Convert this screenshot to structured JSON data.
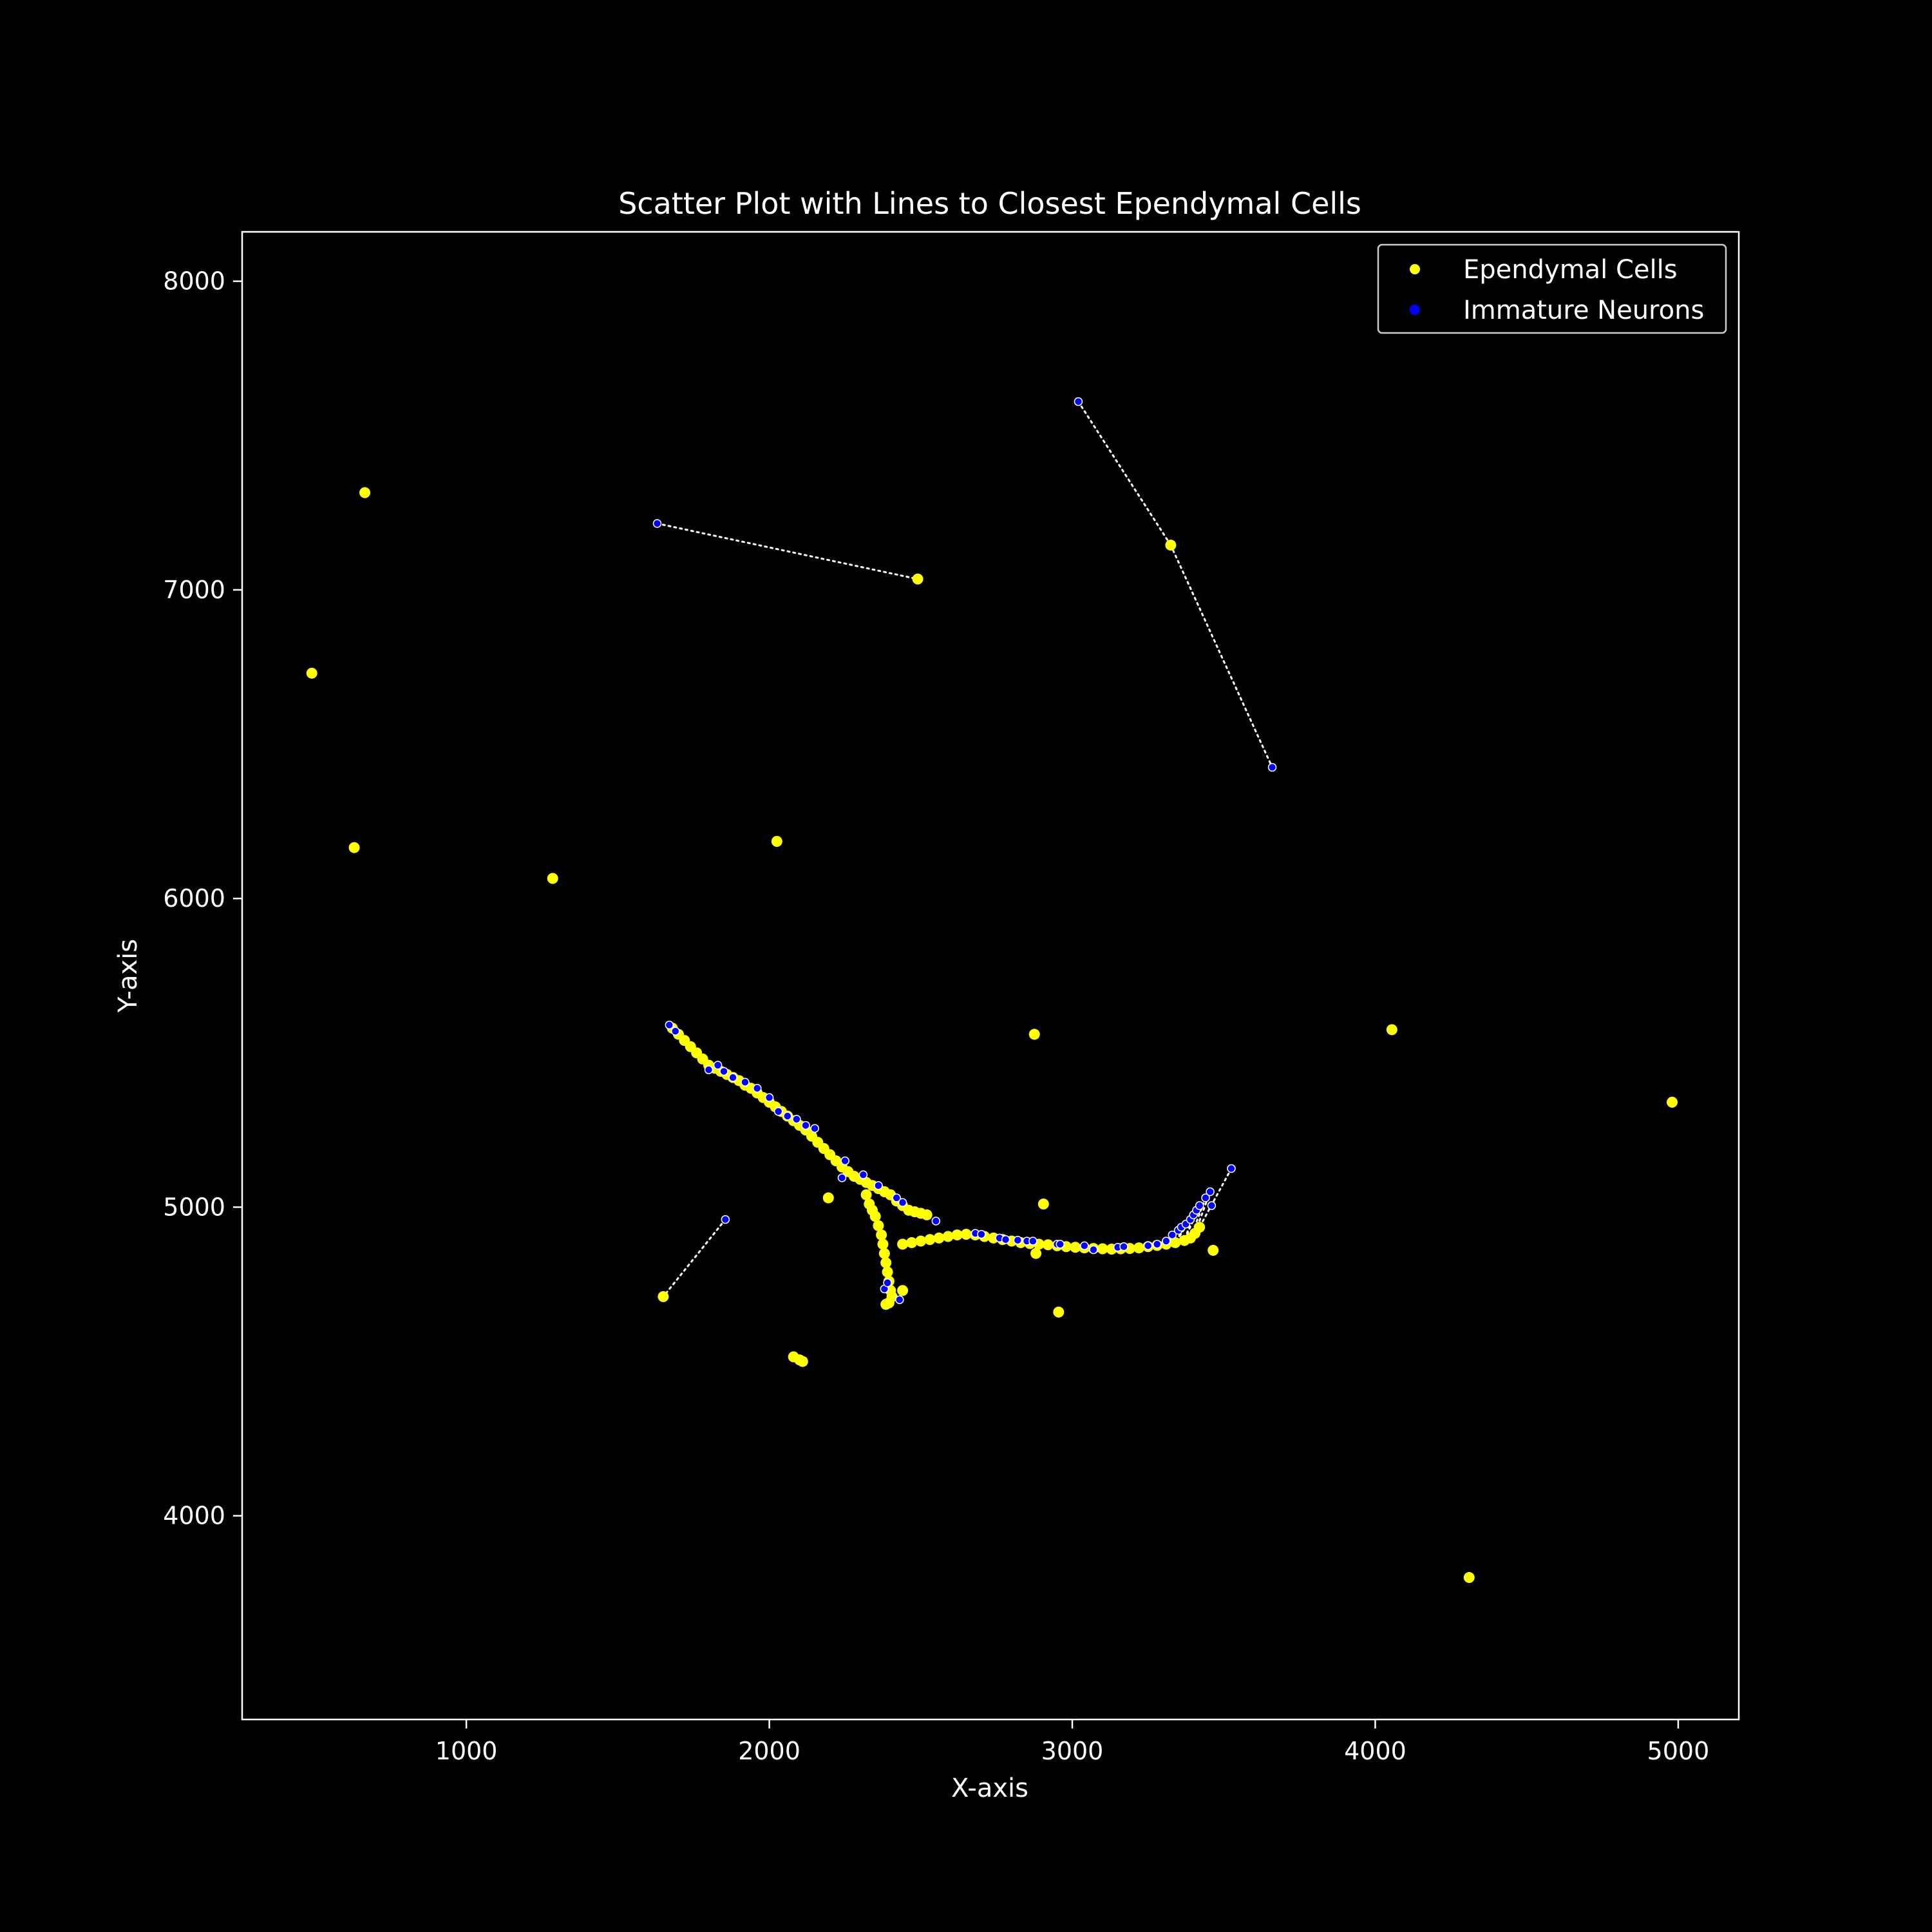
{
  "chart_data": {
    "type": "scatter",
    "title": "Scatter Plot with Lines to Closest Ependymal Cells",
    "xlabel": "X-axis",
    "ylabel": "Y-axis",
    "xlim": [
      260,
      5200
    ],
    "ylim": [
      3340,
      8160
    ],
    "xticks": [
      1000,
      2000,
      3000,
      4000,
      5000
    ],
    "yticks": [
      4000,
      5000,
      6000,
      7000,
      8000
    ],
    "grid": false,
    "legend_position": "top-right",
    "background_color": "#000000",
    "series": [
      {
        "name": "Ependymal Cells",
        "color": "#ffff00",
        "points": [
          [
            665,
            7315
          ],
          [
            490,
            6730
          ],
          [
            630,
            6165
          ],
          [
            1285,
            6065
          ],
          [
            2025,
            6185
          ],
          [
            2490,
            7035
          ],
          [
            3325,
            7145
          ],
          [
            2875,
            5560
          ],
          [
            4055,
            5575
          ],
          [
            4980,
            5340
          ],
          [
            4310,
            3800
          ],
          [
            2905,
            5010
          ],
          [
            2955,
            4660
          ],
          [
            3465,
            4860
          ],
          [
            2195,
            5030
          ],
          [
            1650,
            4710
          ],
          [
            2080,
            4515
          ],
          [
            2100,
            4505
          ],
          [
            2110,
            4500
          ],
          [
            2880,
            4850
          ],
          [
            2440,
            4730
          ],
          [
            2385,
            4685
          ],
          [
            2395,
            4690
          ],
          [
            1680,
            5580
          ],
          [
            1700,
            5560
          ],
          [
            1720,
            5540
          ],
          [
            1740,
            5520
          ],
          [
            1760,
            5500
          ],
          [
            1780,
            5480
          ],
          [
            1800,
            5460
          ],
          [
            1820,
            5450
          ],
          [
            1840,
            5440
          ],
          [
            1860,
            5430
          ],
          [
            1880,
            5420
          ],
          [
            1900,
            5410
          ],
          [
            1920,
            5395
          ],
          [
            1940,
            5385
          ],
          [
            1960,
            5370
          ],
          [
            1980,
            5355
          ],
          [
            2000,
            5340
          ],
          [
            2020,
            5325
          ],
          [
            2040,
            5310
          ],
          [
            2060,
            5295
          ],
          [
            2080,
            5280
          ],
          [
            2100,
            5265
          ],
          [
            2120,
            5250
          ],
          [
            2140,
            5230
          ],
          [
            2160,
            5210
          ],
          [
            2180,
            5190
          ],
          [
            2200,
            5170
          ],
          [
            2220,
            5150
          ],
          [
            2240,
            5130
          ],
          [
            2260,
            5115
          ],
          [
            2280,
            5100
          ],
          [
            2300,
            5090
          ],
          [
            2320,
            5080
          ],
          [
            2340,
            5070
          ],
          [
            2360,
            5060
          ],
          [
            2380,
            5050
          ],
          [
            2400,
            5040
          ],
          [
            2420,
            5020
          ],
          [
            2440,
            5005
          ],
          [
            2460,
            4990
          ],
          [
            2480,
            4985
          ],
          [
            2500,
            4980
          ],
          [
            2520,
            4975
          ],
          [
            2320,
            5040
          ],
          [
            2330,
            5010
          ],
          [
            2340,
            4990
          ],
          [
            2350,
            4970
          ],
          [
            2360,
            4940
          ],
          [
            2370,
            4910
          ],
          [
            2375,
            4880
          ],
          [
            2380,
            4850
          ],
          [
            2385,
            4820
          ],
          [
            2390,
            4790
          ],
          [
            2395,
            4760
          ],
          [
            2400,
            4730
          ],
          [
            2405,
            4710
          ],
          [
            2440,
            4880
          ],
          [
            2470,
            4885
          ],
          [
            2500,
            4890
          ],
          [
            2530,
            4895
          ],
          [
            2560,
            4900
          ],
          [
            2590,
            4905
          ],
          [
            2620,
            4910
          ],
          [
            2650,
            4912
          ],
          [
            2680,
            4910
          ],
          [
            2710,
            4905
          ],
          [
            2740,
            4900
          ],
          [
            2770,
            4895
          ],
          [
            2800,
            4890
          ],
          [
            2830,
            4885
          ],
          [
            2860,
            4882
          ],
          [
            2890,
            4880
          ],
          [
            2920,
            4878
          ],
          [
            2950,
            4875
          ],
          [
            2980,
            4872
          ],
          [
            3010,
            4870
          ],
          [
            3040,
            4868
          ],
          [
            3070,
            4866
          ],
          [
            3100,
            4865
          ],
          [
            3130,
            4864
          ],
          [
            3160,
            4865
          ],
          [
            3190,
            4866
          ],
          [
            3220,
            4868
          ],
          [
            3250,
            4872
          ],
          [
            3280,
            4876
          ],
          [
            3310,
            4880
          ],
          [
            3340,
            4885
          ],
          [
            3370,
            4892
          ],
          [
            3390,
            4900
          ],
          [
            3405,
            4915
          ],
          [
            3420,
            4935
          ]
        ]
      },
      {
        "name": "Immature Neurons",
        "color": "#0000ff",
        "points": [
          [
            3020,
            7610
          ],
          [
            1630,
            7215
          ],
          [
            3660,
            6425
          ],
          [
            1855,
            4960
          ],
          [
            3525,
            5125
          ],
          [
            1670,
            5590
          ],
          [
            1690,
            5570
          ],
          [
            1800,
            5445
          ],
          [
            1830,
            5460
          ],
          [
            1850,
            5440
          ],
          [
            1880,
            5420
          ],
          [
            1920,
            5405
          ],
          [
            1960,
            5385
          ],
          [
            2000,
            5355
          ],
          [
            2030,
            5310
          ],
          [
            2060,
            5295
          ],
          [
            2090,
            5285
          ],
          [
            2120,
            5265
          ],
          [
            2150,
            5255
          ],
          [
            2250,
            5150
          ],
          [
            2310,
            5105
          ],
          [
            2240,
            5095
          ],
          [
            2360,
            5070
          ],
          [
            2420,
            5030
          ],
          [
            2440,
            5015
          ],
          [
            2550,
            4955
          ],
          [
            2680,
            4915
          ],
          [
            2700,
            4912
          ],
          [
            2760,
            4900
          ],
          [
            2780,
            4895
          ],
          [
            2820,
            4893
          ],
          [
            2850,
            4890
          ],
          [
            2870,
            4890
          ],
          [
            2950,
            4880
          ],
          [
            2960,
            4880
          ],
          [
            3040,
            4875
          ],
          [
            3070,
            4862
          ],
          [
            3150,
            4870
          ],
          [
            3170,
            4872
          ],
          [
            3250,
            4875
          ],
          [
            3280,
            4880
          ],
          [
            3310,
            4890
          ],
          [
            3330,
            4910
          ],
          [
            3350,
            4925
          ],
          [
            3360,
            4935
          ],
          [
            3375,
            4945
          ],
          [
            3390,
            4960
          ],
          [
            3400,
            4975
          ],
          [
            3410,
            4990
          ],
          [
            3420,
            5005
          ],
          [
            3440,
            5030
          ],
          [
            3455,
            5050
          ],
          [
            3460,
            5005
          ],
          [
            2380,
            4735
          ],
          [
            2390,
            4755
          ],
          [
            2430,
            4700
          ]
        ]
      }
    ],
    "connections": {
      "color": "#ffffff",
      "style": "dotted",
      "segments": [
        [
          [
            3020,
            7610
          ],
          [
            3325,
            7145
          ]
        ],
        [
          [
            3325,
            7145
          ],
          [
            3660,
            6425
          ]
        ],
        [
          [
            1630,
            7215
          ],
          [
            2490,
            7035
          ]
        ],
        [
          [
            1855,
            4960
          ],
          [
            1650,
            4710
          ]
        ],
        [
          [
            3525,
            5125
          ],
          [
            3420,
            4935
          ]
        ],
        [
          [
            3455,
            5050
          ],
          [
            3405,
            4915
          ]
        ],
        [
          [
            3440,
            5030
          ],
          [
            3390,
            4900
          ]
        ],
        [
          [
            3420,
            5005
          ],
          [
            3370,
            4892
          ]
        ],
        [
          [
            3410,
            4990
          ],
          [
            3340,
            4885
          ]
        ],
        [
          [
            3400,
            4975
          ],
          [
            3370,
            4892
          ]
        ],
        [
          [
            3390,
            4960
          ],
          [
            3340,
            4885
          ]
        ],
        [
          [
            3375,
            4945
          ],
          [
            3340,
            4885
          ]
        ],
        [
          [
            3360,
            4935
          ],
          [
            3310,
            4880
          ]
        ],
        [
          [
            3350,
            4925
          ],
          [
            3310,
            4880
          ]
        ]
      ]
    }
  }
}
